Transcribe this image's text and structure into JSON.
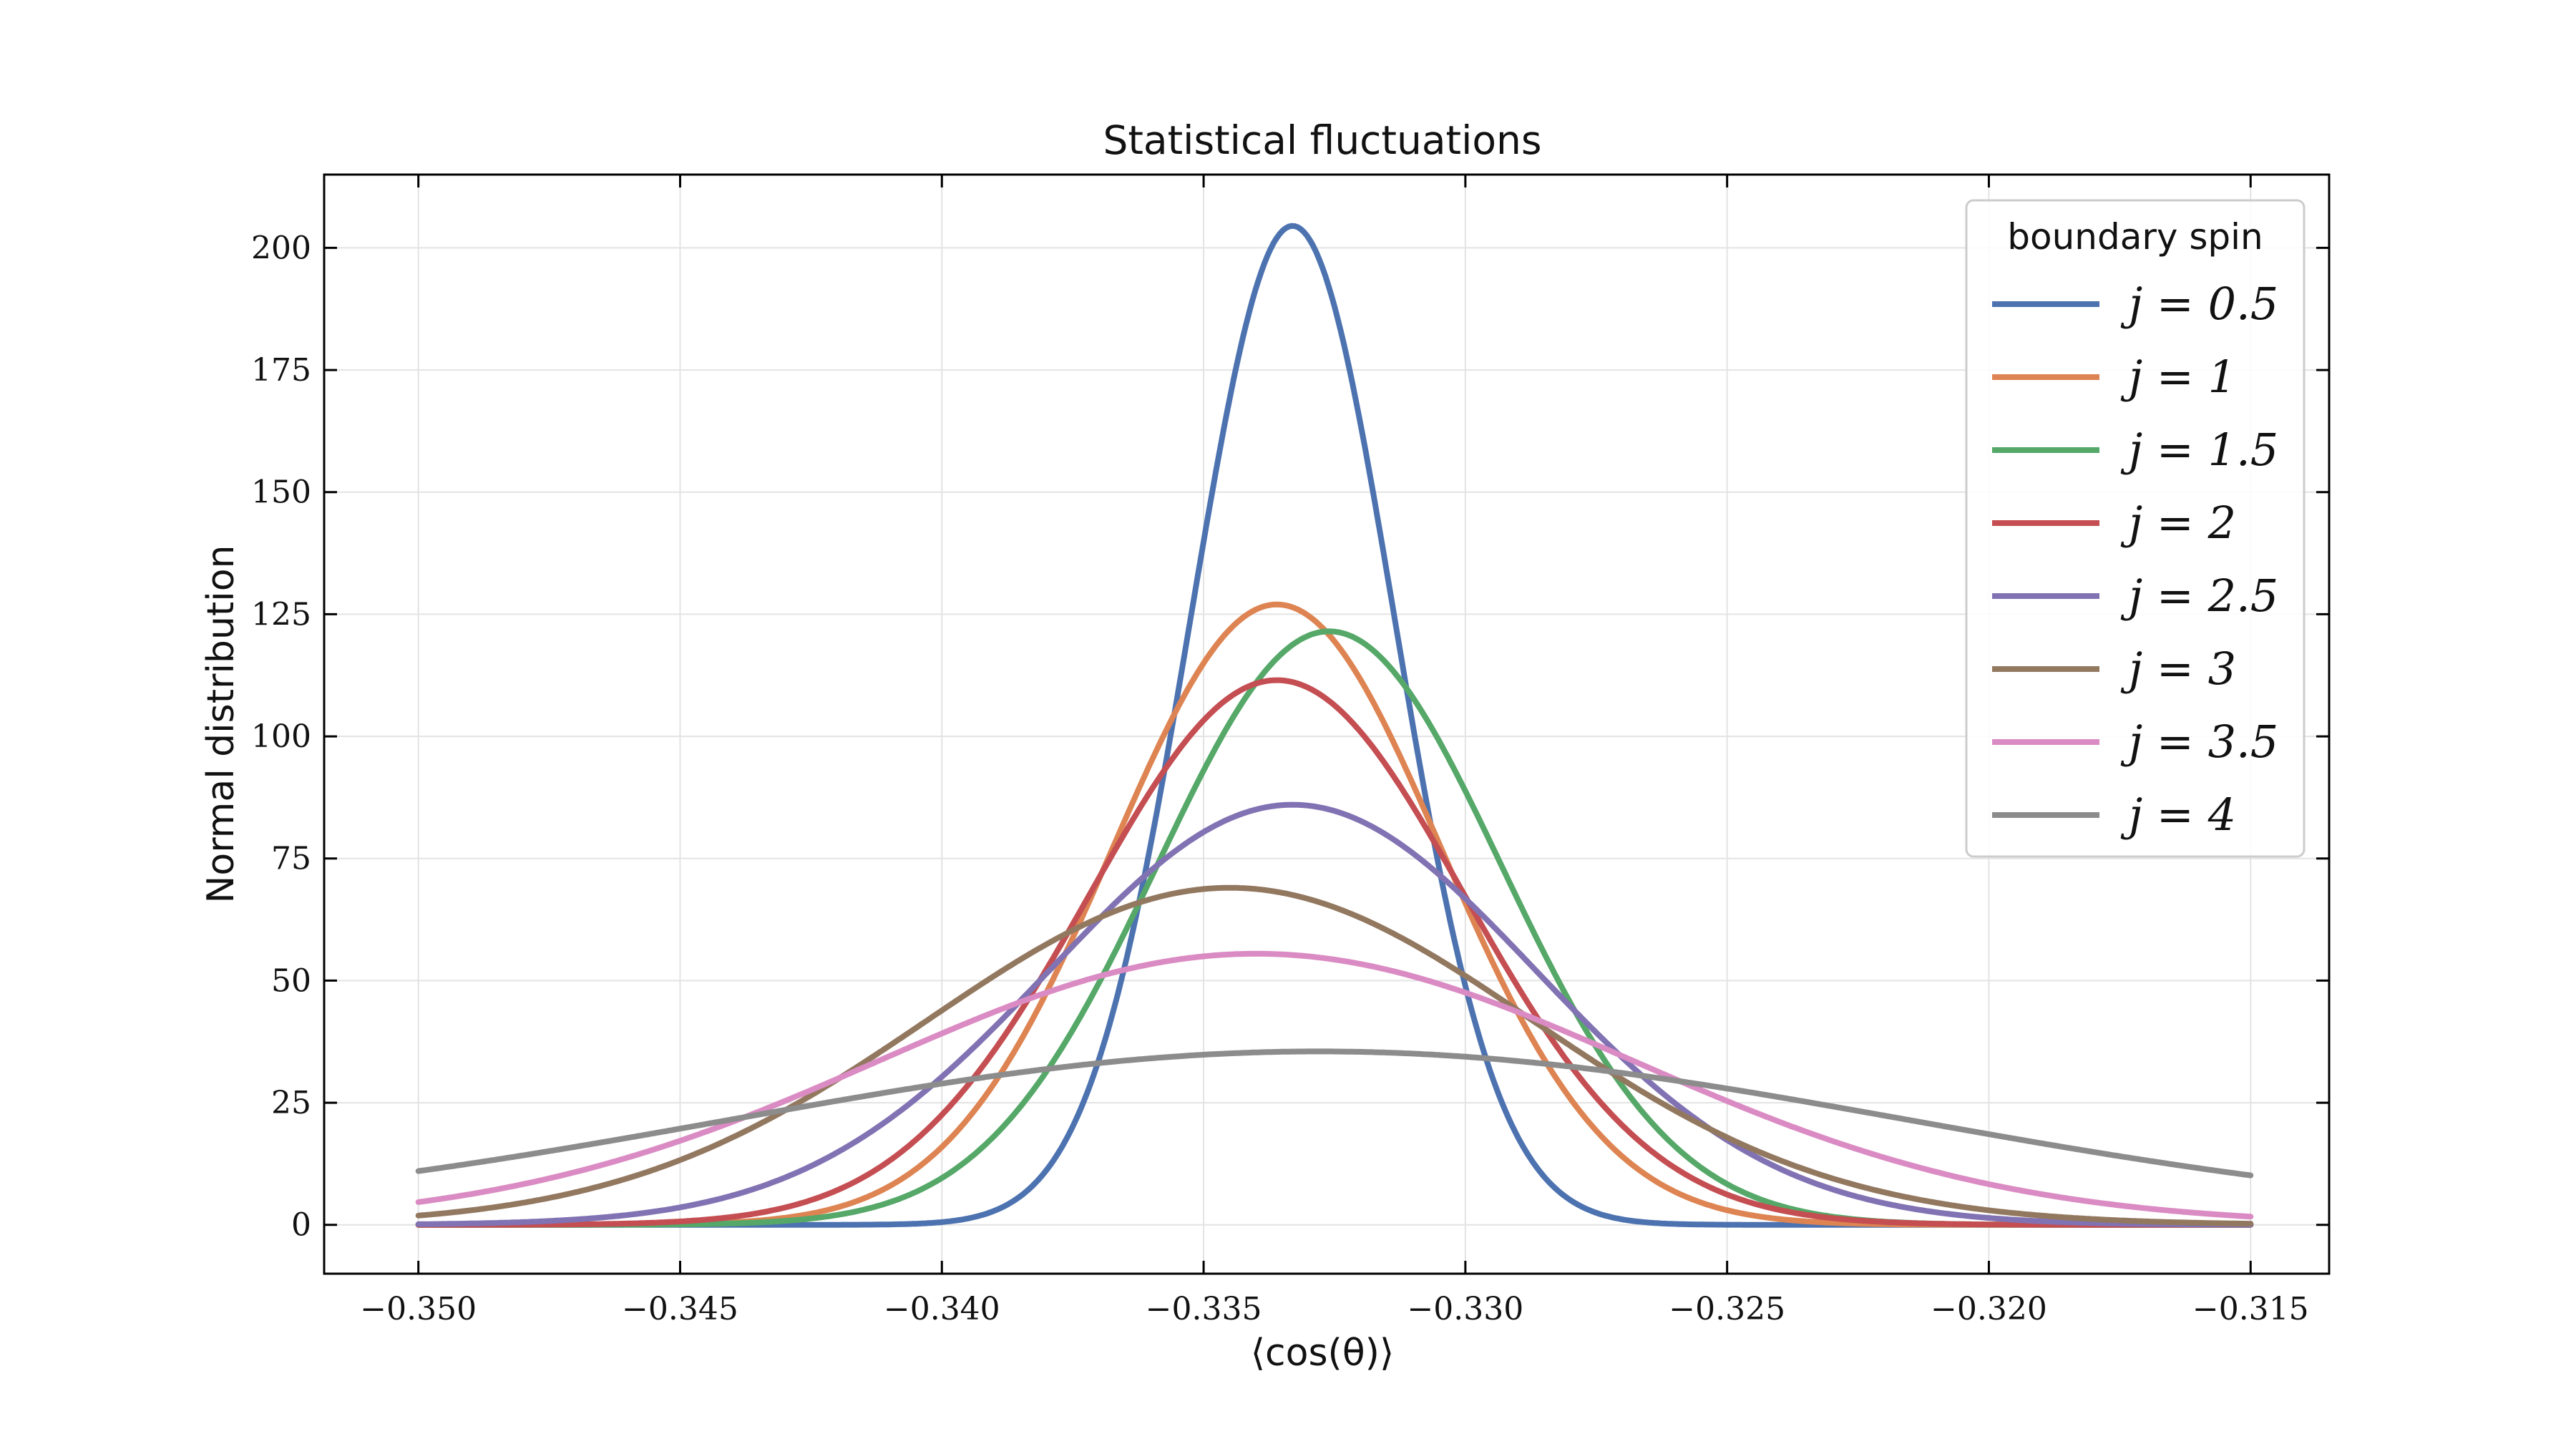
{
  "chart_data": {
    "type": "line",
    "title": "Statistical fluctuations",
    "xlabel": "⟨cos(θ)⟩",
    "ylabel": "Normal distribution",
    "xlim": [
      -0.3518,
      -0.3135
    ],
    "ylim": [
      -10,
      215
    ],
    "xticks": [
      -0.35,
      -0.345,
      -0.34,
      -0.335,
      -0.33,
      -0.325,
      -0.32,
      -0.315
    ],
    "xtick_labels": [
      "−0.350",
      "−0.345",
      "−0.340",
      "−0.335",
      "−0.330",
      "−0.325",
      "−0.320",
      "−0.315"
    ],
    "yticks": [
      0,
      25,
      50,
      75,
      100,
      125,
      150,
      175,
      200
    ],
    "ytick_labels": [
      "0",
      "25",
      "50",
      "75",
      "100",
      "125",
      "150",
      "175",
      "200"
    ],
    "grid": true,
    "legend": {
      "title": "boundary spin",
      "placement": "top-right"
    },
    "x_range": [
      -0.35,
      -0.315
    ],
    "series": [
      {
        "name": "j = 0.5",
        "color": "#4c72b0",
        "mean": -0.3333,
        "peak": 204.5
      },
      {
        "name": "j = 1",
        "color": "#dd8452",
        "mean": -0.3336,
        "peak": 127
      },
      {
        "name": "j = 1.5",
        "color": "#55a868",
        "mean": -0.3326,
        "peak": 121.5
      },
      {
        "name": "j = 2",
        "color": "#c44e52",
        "mean": -0.3336,
        "peak": 111.5
      },
      {
        "name": "j = 2.5",
        "color": "#8172b3",
        "mean": -0.3333,
        "peak": 86
      },
      {
        "name": "j = 3",
        "color": "#937860",
        "mean": -0.3345,
        "peak": 69
      },
      {
        "name": "j = 3.5",
        "color": "#da8bc3",
        "mean": -0.334,
        "peak": 55.5
      },
      {
        "name": "j = 4",
        "color": "#8c8c8c",
        "mean": -0.3328,
        "peak": 35.5
      }
    ]
  }
}
